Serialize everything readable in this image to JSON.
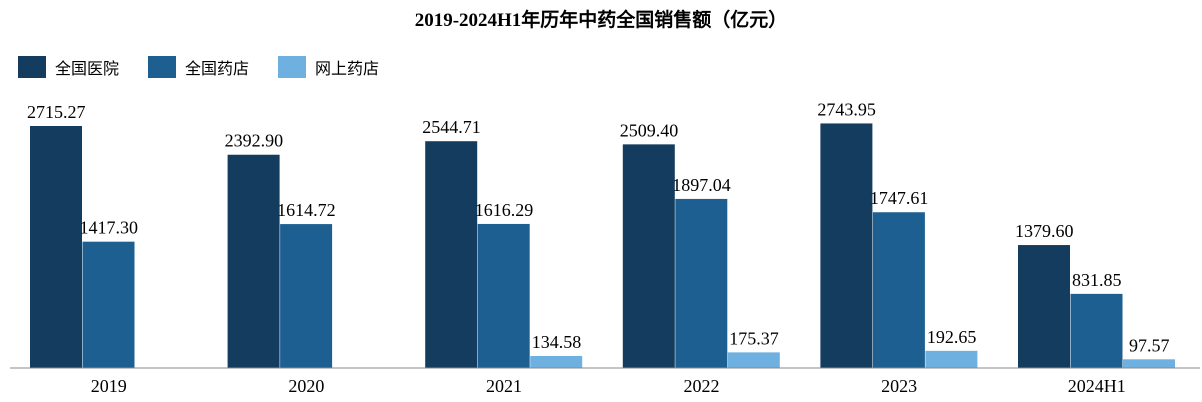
{
  "chart_data": {
    "type": "bar",
    "title": "2019-2024H1年历年中药全国销售额（亿元）",
    "categories": [
      "2019",
      "2020",
      "2021",
      "2022",
      "2023",
      "2024H1"
    ],
    "series": [
      {
        "name": "全国医院",
        "color": "#143c5f",
        "values": [
          2715.27,
          2392.9,
          2544.71,
          2509.4,
          2743.95,
          1379.6
        ]
      },
      {
        "name": "全国药店",
        "color": "#1d5f91",
        "values": [
          1417.3,
          1614.72,
          1616.29,
          1897.04,
          1747.61,
          831.85
        ]
      },
      {
        "name": "网上药店",
        "color": "#6eb0e0",
        "values": [
          null,
          null,
          134.58,
          175.37,
          192.65,
          97.57
        ]
      }
    ],
    "legend_position": "top-left",
    "grid": false,
    "data_labels": true,
    "ylim": [
      0,
      2800
    ]
  }
}
